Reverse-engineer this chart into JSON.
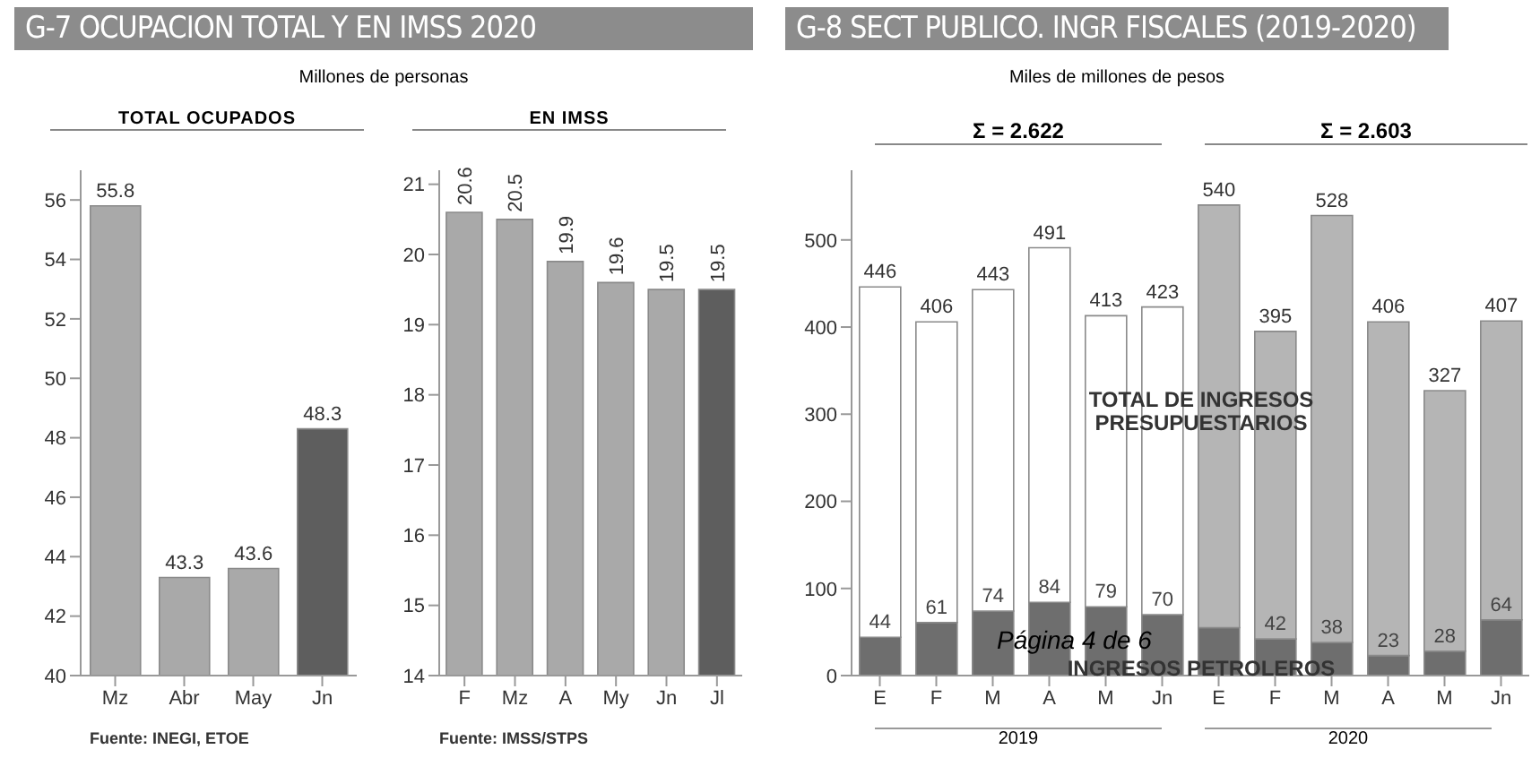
{
  "chart_data": [
    {
      "type": "bar",
      "title": "G-7 OCUPACION TOTAL Y EN IMSS 2020",
      "subtitle": "Millones de personas",
      "annotations": [
        "TOTAL OCUPADOS",
        "Fuente: INEGI, ETOE"
      ],
      "categories": [
        "Mz",
        "Abr",
        "May",
        "Jn"
      ],
      "values": [
        55.8,
        43.3,
        43.6,
        48.3
      ],
      "colors": [
        "#a9a9a9",
        "#a9a9a9",
        "#a9a9a9",
        "#5e5e5e"
      ],
      "ylim": [
        40,
        57
      ],
      "yticks": [
        40,
        42,
        44,
        46,
        48,
        50,
        52,
        54,
        56
      ],
      "data_labels": true
    },
    {
      "type": "bar",
      "title": "EN IMSS",
      "annotations": [
        "Fuente: IMSS/STPS"
      ],
      "categories": [
        "F",
        "Mz",
        "A",
        "My",
        "Jn",
        "Jl"
      ],
      "values": [
        20.6,
        20.5,
        19.9,
        19.6,
        19.5,
        19.5
      ],
      "colors": [
        "#a9a9a9",
        "#a9a9a9",
        "#a9a9a9",
        "#a9a9a9",
        "#a9a9a9",
        "#5e5e5e"
      ],
      "ylim": [
        14,
        21.2
      ],
      "yticks": [
        14,
        15,
        16,
        17,
        18,
        19,
        20,
        21
      ],
      "data_labels": true
    },
    {
      "type": "bar",
      "title": "G-8 SECT PUBLICO. INGR FISCALES (2019-2020)",
      "subtitle": "Miles de millones de pesos",
      "annotations": [
        "Σ = 2.622",
        "Σ = 2.603",
        "2019",
        "2020",
        "Página 4 de 6"
      ],
      "categories": [
        "E",
        "F",
        "M",
        "A",
        "M",
        "Jn",
        "E",
        "F",
        "M",
        "A",
        "M",
        "Jn"
      ],
      "stacked": true,
      "ylim": [
        0,
        580
      ],
      "yticks": [
        0,
        100,
        200,
        300,
        400,
        500
      ],
      "series": [
        {
          "name": "INGRESOS PETROLEROS",
          "color": "#6e6e6e",
          "values": [
            44,
            61,
            74,
            84,
            79,
            70,
            55,
            42,
            38,
            23,
            28,
            64
          ],
          "value_labels": [
            "44",
            "61",
            "74",
            "84",
            "79",
            "70",
            null,
            "42",
            "38",
            "23",
            "28",
            "64"
          ]
        },
        {
          "name": "TOTAL DE INGRESOS PRESUPUESTARIOS",
          "colors": [
            "#ffffff",
            "#ffffff",
            "#ffffff",
            "#ffffff",
            "#ffffff",
            "#ffffff",
            "#b5b5b5",
            "#b5b5b5",
            "#b5b5b5",
            "#b5b5b5",
            "#b5b5b5",
            "#b5b5b5"
          ],
          "values": [
            402,
            345,
            369,
            407,
            334,
            353,
            485,
            353,
            490,
            383,
            299,
            343
          ]
        }
      ],
      "totals": [
        "446",
        "406",
        "443",
        "491",
        "413",
        "423",
        "540",
        "395",
        "528",
        "406",
        "327",
        "407"
      ]
    }
  ]
}
